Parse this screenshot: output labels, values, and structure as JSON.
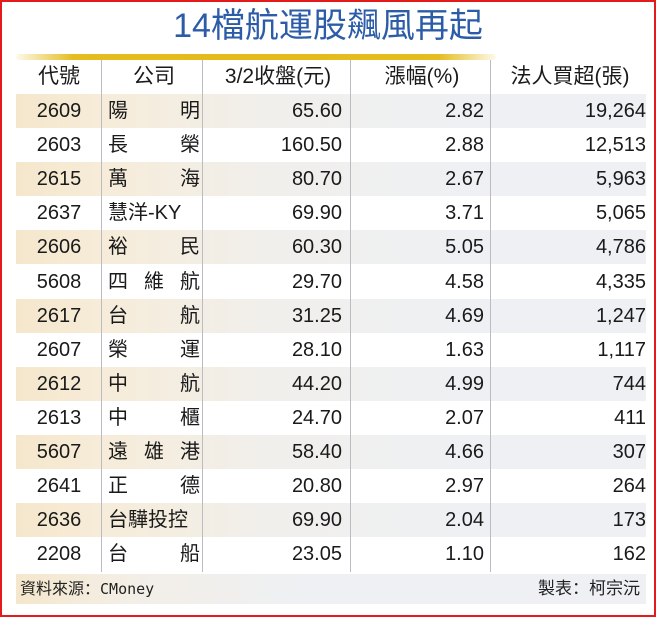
{
  "title": "14檔航運股飆風再起",
  "table": {
    "headers": {
      "code": "代號",
      "company": "公司",
      "close": "3/2收盤(元)",
      "change": "漲幅(%)",
      "net_buy": "法人買超(張)"
    },
    "rows": [
      {
        "code": "2609",
        "company": [
          "陽",
          "明"
        ],
        "close": "65.60",
        "change": "2.82",
        "net_buy": "19,264"
      },
      {
        "code": "2603",
        "company": [
          "長",
          "榮"
        ],
        "close": "160.50",
        "change": "2.88",
        "net_buy": "12,513"
      },
      {
        "code": "2615",
        "company": [
          "萬",
          "海"
        ],
        "close": "80.70",
        "change": "2.67",
        "net_buy": "5,963"
      },
      {
        "code": "2637",
        "company": [
          "慧洋-KY"
        ],
        "close": "69.90",
        "change": "3.71",
        "net_buy": "5,065"
      },
      {
        "code": "2606",
        "company": [
          "裕",
          "民"
        ],
        "close": "60.30",
        "change": "5.05",
        "net_buy": "4,786"
      },
      {
        "code": "5608",
        "company": [
          "四",
          "維",
          "航"
        ],
        "close": "29.70",
        "change": "4.58",
        "net_buy": "4,335"
      },
      {
        "code": "2617",
        "company": [
          "台",
          "航"
        ],
        "close": "31.25",
        "change": "4.69",
        "net_buy": "1,247"
      },
      {
        "code": "2607",
        "company": [
          "榮",
          "運"
        ],
        "close": "28.10",
        "change": "1.63",
        "net_buy": "1,117"
      },
      {
        "code": "2612",
        "company": [
          "中",
          "航"
        ],
        "close": "44.20",
        "change": "4.99",
        "net_buy": "744"
      },
      {
        "code": "2613",
        "company": [
          "中",
          "櫃"
        ],
        "close": "24.70",
        "change": "2.07",
        "net_buy": "411"
      },
      {
        "code": "5607",
        "company": [
          "遠",
          "雄",
          "港"
        ],
        "close": "58.40",
        "change": "4.66",
        "net_buy": "307"
      },
      {
        "code": "2641",
        "company": [
          "正",
          "德"
        ],
        "close": "20.80",
        "change": "2.97",
        "net_buy": "264"
      },
      {
        "code": "2636",
        "company": [
          "台驊投控"
        ],
        "close": "69.90",
        "change": "2.04",
        "net_buy": "173"
      },
      {
        "code": "2208",
        "company": [
          "台",
          "船"
        ],
        "close": "23.05",
        "change": "1.10",
        "net_buy": "162"
      }
    ]
  },
  "footer": {
    "source_label": "資料來源：",
    "source_value": "CMoney",
    "maker": "製表：柯宗沅"
  },
  "colors": {
    "title": "#2c5ca8",
    "border": "#e31b1b",
    "gold_rule": "#e6b91c",
    "shade_row": "#f5e7cc"
  }
}
